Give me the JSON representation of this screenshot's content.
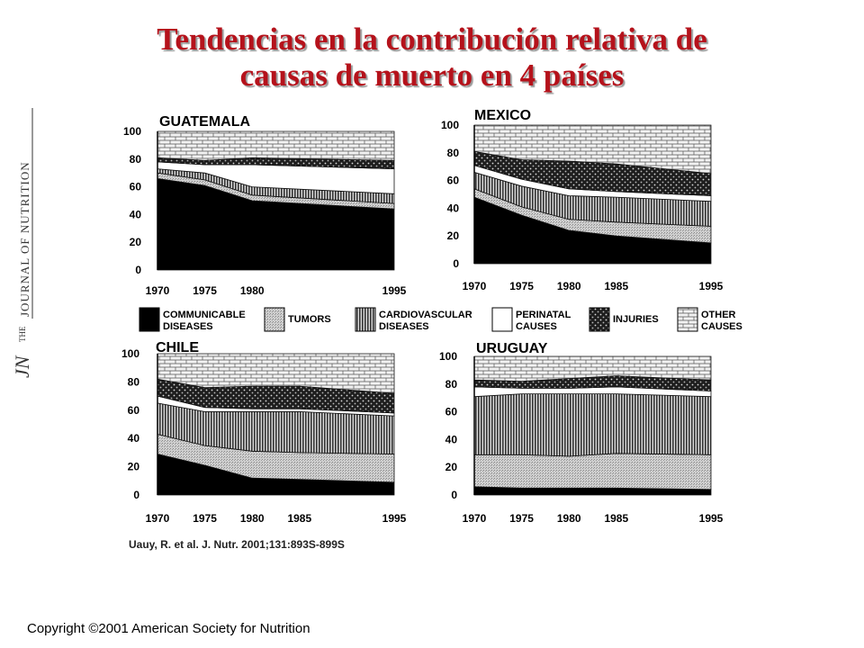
{
  "slide": {
    "title_line1": "Tendencias en la contribución relativa de",
    "title_line2": "causas de muerto en 4 países",
    "citation": "Uauy, R. et al. J. Nutr. 2001;131:893S-899S",
    "copyright": "Copyright ©2001 American Society for Nutrition"
  },
  "logo": {
    "initials": "JN",
    "the": "THE",
    "name": "JOURNAL OF NUTRITION"
  },
  "colors": {
    "title": "#b5121b",
    "communicable": "#000000",
    "tumors": "#c8c8c8",
    "cardiovascular": "#555555",
    "perinatal": "#ffffff",
    "injuries": "#3a3a3a",
    "other": "#e8e8e8"
  },
  "legend": [
    {
      "key": "communicable",
      "line1": "COMMUNICABLE",
      "line2": "DISEASES"
    },
    {
      "key": "tumors",
      "line1": "TUMORS",
      "line2": ""
    },
    {
      "key": "cardiovascular",
      "line1": "CARDIOVASCULAR",
      "line2": "DISEASES"
    },
    {
      "key": "perinatal",
      "line1": "PERINATAL",
      "line2": "CAUSES"
    },
    {
      "key": "injuries",
      "line1": "INJURIES",
      "line2": ""
    },
    {
      "key": "other",
      "line1": "OTHER",
      "line2": "CAUSES"
    }
  ],
  "chart_data": [
    {
      "type": "area",
      "title": "GUATEMALA",
      "ylim": [
        0,
        100
      ],
      "yticks": [
        "0",
        "20",
        "40",
        "60",
        "80",
        "100"
      ],
      "x": [
        1970,
        1975,
        1980,
        1995
      ],
      "xticks": [
        "1970",
        "1975",
        "1980",
        "1995"
      ],
      "series": [
        {
          "key": "communicable",
          "values": [
            66,
            61,
            50,
            44
          ]
        },
        {
          "key": "tumors",
          "values": [
            4,
            4,
            4,
            4
          ]
        },
        {
          "key": "cardiovascular",
          "values": [
            3,
            5,
            6,
            7
          ]
        },
        {
          "key": "perinatal",
          "values": [
            5,
            6,
            16,
            18
          ]
        },
        {
          "key": "injuries",
          "values": [
            3,
            3,
            5,
            6
          ]
        },
        {
          "key": "other",
          "values": [
            19,
            21,
            19,
            21
          ]
        }
      ]
    },
    {
      "type": "area",
      "title": "MEXICO",
      "ylim": [
        0,
        100
      ],
      "yticks": [
        "0",
        "20",
        "40",
        "60",
        "80",
        "100"
      ],
      "x": [
        1970,
        1975,
        1980,
        1985,
        1995
      ],
      "xticks": [
        "1970",
        "1975",
        "1980",
        "1985",
        "1995"
      ],
      "series": [
        {
          "key": "communicable",
          "values": [
            48,
            35,
            24,
            20,
            15
          ]
        },
        {
          "key": "tumors",
          "values": [
            6,
            6,
            8,
            10,
            12
          ]
        },
        {
          "key": "cardiovascular",
          "values": [
            12,
            15,
            17,
            18,
            18
          ]
        },
        {
          "key": "perinatal",
          "values": [
            5,
            5,
            5,
            4,
            4
          ]
        },
        {
          "key": "injuries",
          "values": [
            10,
            14,
            20,
            20,
            16
          ]
        },
        {
          "key": "other",
          "values": [
            19,
            25,
            26,
            28,
            35
          ]
        }
      ]
    },
    {
      "type": "area",
      "title": "CHILE",
      "ylim": [
        0,
        100
      ],
      "yticks": [
        "0",
        "20",
        "40",
        "60",
        "80",
        "100"
      ],
      "x": [
        1970,
        1975,
        1980,
        1985,
        1995
      ],
      "xticks": [
        "1970",
        "1975",
        "1980",
        "1985",
        "1995"
      ],
      "series": [
        {
          "key": "communicable",
          "values": [
            29,
            21,
            12,
            11,
            9
          ]
        },
        {
          "key": "tumors",
          "values": [
            14,
            14,
            19,
            19,
            20
          ]
        },
        {
          "key": "cardiovascular",
          "values": [
            22,
            24,
            28,
            29,
            27
          ]
        },
        {
          "key": "perinatal",
          "values": [
            5,
            3,
            2,
            2,
            2
          ]
        },
        {
          "key": "injuries",
          "values": [
            12,
            14,
            16,
            16,
            14
          ]
        },
        {
          "key": "other",
          "values": [
            18,
            24,
            23,
            23,
            28
          ]
        }
      ]
    },
    {
      "type": "area",
      "title": "URUGUAY",
      "ylim": [
        0,
        100
      ],
      "yticks": [
        "0",
        "20",
        "40",
        "60",
        "80",
        "100"
      ],
      "x": [
        1970,
        1975,
        1980,
        1985,
        1995
      ],
      "xticks": [
        "1970",
        "1975",
        "1980",
        "1985",
        "1995"
      ],
      "series": [
        {
          "key": "communicable",
          "values": [
            6,
            5,
            5,
            5,
            4
          ]
        },
        {
          "key": "tumors",
          "values": [
            23,
            24,
            23,
            25,
            25
          ]
        },
        {
          "key": "cardiovascular",
          "values": [
            42,
            44,
            45,
            43,
            42
          ]
        },
        {
          "key": "perinatal",
          "values": [
            7,
            4,
            4,
            5,
            4
          ]
        },
        {
          "key": "injuries",
          "values": [
            5,
            5,
            7,
            8,
            8
          ]
        },
        {
          "key": "other",
          "values": [
            17,
            18,
            16,
            14,
            17
          ]
        }
      ]
    }
  ]
}
